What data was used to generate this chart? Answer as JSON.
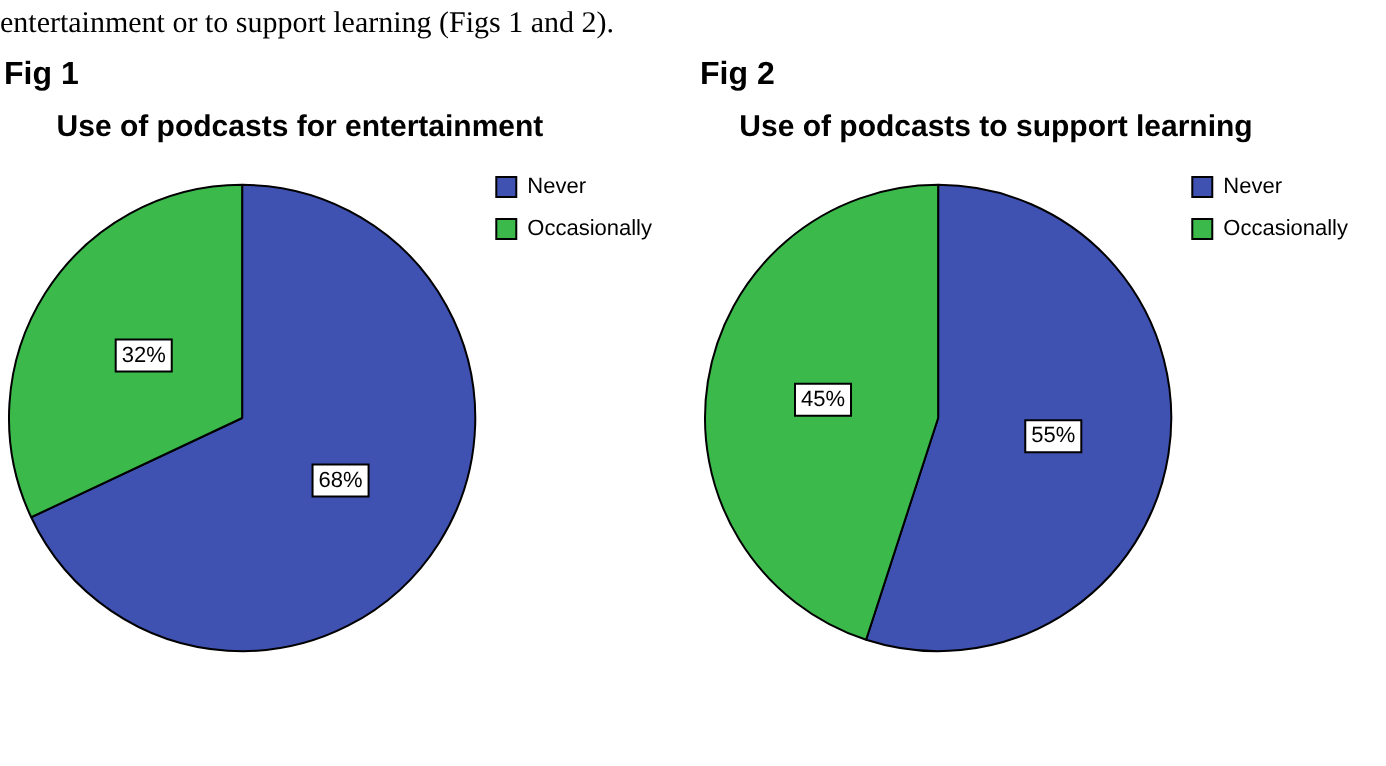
{
  "chart_data": [
    {
      "type": "pie",
      "title": "Use of podcasts for entertainment",
      "annotations": [
        "entertainment or to support learning (Figs 1 and 2).",
        "Fig 1"
      ],
      "categories": [
        "Never",
        "Occasionally"
      ],
      "values": [
        68,
        32
      ],
      "colors": [
        "#3f51b1",
        "#3cb94b"
      ],
      "value_labels": [
        "68%",
        "32%"
      ],
      "legend": "top right"
    },
    {
      "type": "pie",
      "title": "Use of podcasts to support learning",
      "annotations": [
        "Fig 2"
      ],
      "categories": [
        "Never",
        "Occasionally"
      ],
      "values": [
        55,
        45
      ],
      "colors": [
        "#3f51b1",
        "#3cb94b"
      ],
      "value_labels": [
        "55%",
        "45%"
      ],
      "legend": "top right"
    }
  ]
}
